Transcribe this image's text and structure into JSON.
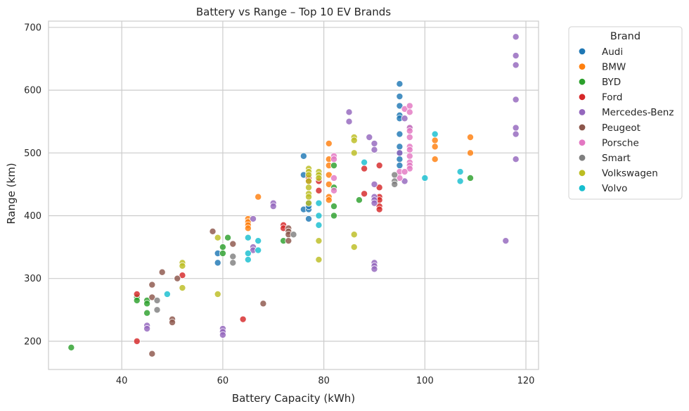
{
  "chart_data": {
    "type": "scatter",
    "title": "Battery vs Range – Top 10 EV Brands",
    "xlabel": "Battery Capacity (kWh)",
    "ylabel": "Range (km)",
    "xlim": [
      25.5,
      122.5
    ],
    "ylim": [
      155,
      710
    ],
    "xticks": [
      40,
      60,
      80,
      100,
      120
    ],
    "yticks": [
      200,
      300,
      400,
      500,
      600,
      700
    ],
    "grid": true,
    "legend_title": "Brand",
    "legend_position": "outside-top-right",
    "series": [
      {
        "name": "Audi",
        "color": "#1f77b4",
        "points": [
          [
            76,
            495
          ],
          [
            76,
            465
          ],
          [
            76,
            410
          ],
          [
            77,
            410
          ],
          [
            77,
            415
          ],
          [
            77,
            395
          ],
          [
            77,
            420
          ],
          [
            59,
            325
          ],
          [
            59,
            340
          ],
          [
            95,
            610
          ],
          [
            95,
            590
          ],
          [
            95,
            575
          ],
          [
            95,
            560
          ],
          [
            95,
            555
          ],
          [
            95,
            530
          ],
          [
            95,
            510
          ],
          [
            95,
            500
          ],
          [
            95,
            490
          ],
          [
            95,
            480
          ],
          [
            97,
            540
          ]
        ]
      },
      {
        "name": "BMW",
        "color": "#ff7f0e",
        "points": [
          [
            67,
            430
          ],
          [
            65,
            395
          ],
          [
            65,
            390
          ],
          [
            65,
            385
          ],
          [
            65,
            380
          ],
          [
            81,
            515
          ],
          [
            81,
            490
          ],
          [
            81,
            480
          ],
          [
            81,
            465
          ],
          [
            81,
            450
          ],
          [
            81,
            430
          ],
          [
            81,
            425
          ],
          [
            102,
            520
          ],
          [
            102,
            510
          ],
          [
            102,
            490
          ],
          [
            109,
            525
          ],
          [
            109,
            500
          ]
        ]
      },
      {
        "name": "BYD",
        "color": "#2ca02c",
        "points": [
          [
            30,
            190
          ],
          [
            43,
            270
          ],
          [
            43,
            265
          ],
          [
            45,
            265
          ],
          [
            45,
            260
          ],
          [
            45,
            245
          ],
          [
            60,
            350
          ],
          [
            60,
            340
          ],
          [
            61,
            365
          ],
          [
            72,
            360
          ],
          [
            82,
            480
          ],
          [
            82,
            445
          ],
          [
            82,
            415
          ],
          [
            82,
            400
          ],
          [
            87,
            425
          ],
          [
            109,
            460
          ]
        ]
      },
      {
        "name": "Ford",
        "color": "#d62728",
        "points": [
          [
            43,
            275
          ],
          [
            43,
            200
          ],
          [
            52,
            305
          ],
          [
            64,
            235
          ],
          [
            72,
            385
          ],
          [
            72,
            380
          ],
          [
            77,
            460
          ],
          [
            77,
            455
          ],
          [
            79,
            455
          ],
          [
            79,
            440
          ],
          [
            88,
            475
          ],
          [
            88,
            435
          ],
          [
            91,
            480
          ],
          [
            91,
            445
          ],
          [
            91,
            430
          ],
          [
            91,
            425
          ],
          [
            91,
            415
          ],
          [
            91,
            410
          ]
        ]
      },
      {
        "name": "Mercedes-Benz",
        "color": "#9467bd",
        "points": [
          [
            45,
            225
          ],
          [
            45,
            220
          ],
          [
            60,
            220
          ],
          [
            60,
            215
          ],
          [
            60,
            210
          ],
          [
            66,
            395
          ],
          [
            66,
            350
          ],
          [
            66,
            345
          ],
          [
            70,
            420
          ],
          [
            70,
            415
          ],
          [
            85,
            565
          ],
          [
            85,
            550
          ],
          [
            89,
            525
          ],
          [
            90,
            325
          ],
          [
            90,
            320
          ],
          [
            90,
            315
          ],
          [
            90,
            515
          ],
          [
            90,
            505
          ],
          [
            90,
            450
          ],
          [
            90,
            430
          ],
          [
            90,
            425
          ],
          [
            90,
            420
          ],
          [
            95,
            500
          ],
          [
            96,
            555
          ],
          [
            96,
            455
          ],
          [
            116,
            360
          ],
          [
            118,
            685
          ],
          [
            118,
            655
          ],
          [
            118,
            640
          ],
          [
            118,
            585
          ],
          [
            118,
            540
          ],
          [
            118,
            530
          ],
          [
            118,
            490
          ]
        ]
      },
      {
        "name": "Peugeot",
        "color": "#8c564b",
        "points": [
          [
            46,
            290
          ],
          [
            46,
            270
          ],
          [
            46,
            180
          ],
          [
            48,
            310
          ],
          [
            50,
            235
          ],
          [
            50,
            230
          ],
          [
            51,
            300
          ],
          [
            58,
            375
          ],
          [
            62,
            355
          ],
          [
            68,
            260
          ],
          [
            73,
            380
          ],
          [
            73,
            375
          ],
          [
            73,
            370
          ],
          [
            73,
            360
          ]
        ]
      },
      {
        "name": "Porsche",
        "color": "#e377c2",
        "points": [
          [
            82,
            495
          ],
          [
            82,
            490
          ],
          [
            82,
            460
          ],
          [
            82,
            440
          ],
          [
            95,
            470
          ],
          [
            95,
            460
          ],
          [
            96,
            570
          ],
          [
            97,
            575
          ],
          [
            97,
            565
          ],
          [
            97,
            540
          ],
          [
            97,
            535
          ],
          [
            97,
            525
          ],
          [
            97,
            510
          ],
          [
            97,
            505
          ],
          [
            97,
            495
          ],
          [
            97,
            485
          ],
          [
            97,
            480
          ],
          [
            97,
            475
          ],
          [
            96,
            470
          ]
        ]
      },
      {
        "name": "Smart",
        "color": "#7f7f7f",
        "points": [
          [
            47,
            265
          ],
          [
            47,
            250
          ],
          [
            62,
            335
          ],
          [
            62,
            325
          ],
          [
            74,
            370
          ],
          [
            94,
            465
          ],
          [
            94,
            455
          ],
          [
            94,
            450
          ]
        ]
      },
      {
        "name": "Volkswagen",
        "color": "#bcbd22",
        "points": [
          [
            52,
            325
          ],
          [
            52,
            320
          ],
          [
            52,
            285
          ],
          [
            59,
            365
          ],
          [
            59,
            275
          ],
          [
            77,
            475
          ],
          [
            77,
            470
          ],
          [
            77,
            465
          ],
          [
            77,
            455
          ],
          [
            77,
            445
          ],
          [
            77,
            435
          ],
          [
            77,
            430
          ],
          [
            77,
            420
          ],
          [
            79,
            470
          ],
          [
            79,
            465
          ],
          [
            79,
            460
          ],
          [
            79,
            360
          ],
          [
            79,
            330
          ],
          [
            86,
            525
          ],
          [
            86,
            520
          ],
          [
            86,
            500
          ],
          [
            86,
            370
          ],
          [
            86,
            350
          ]
        ]
      },
      {
        "name": "Volvo",
        "color": "#17becf",
        "points": [
          [
            49,
            275
          ],
          [
            65,
            365
          ],
          [
            65,
            340
          ],
          [
            65,
            330
          ],
          [
            67,
            360
          ],
          [
            67,
            345
          ],
          [
            79,
            420
          ],
          [
            79,
            400
          ],
          [
            79,
            385
          ],
          [
            88,
            485
          ],
          [
            100,
            460
          ],
          [
            102,
            530
          ],
          [
            107,
            470
          ],
          [
            107,
            455
          ]
        ]
      }
    ]
  }
}
